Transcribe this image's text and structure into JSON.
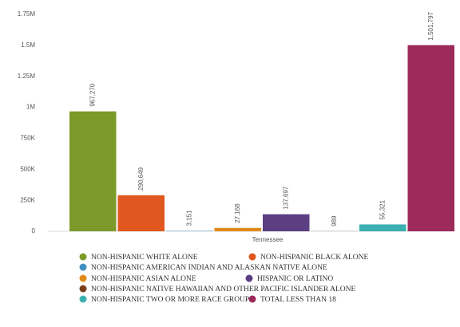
{
  "chart_data": {
    "type": "bar",
    "categories": [
      "Tennessee"
    ],
    "series": [
      {
        "name": "NON-HISPANIC WHITE ALONE",
        "color": "#7b9a2a",
        "values": [
          967270
        ],
        "value_labels": [
          "967,270"
        ]
      },
      {
        "name": "NON-HISPANIC BLACK ALONE",
        "color": "#e0581f",
        "values": [
          290649
        ],
        "value_labels": [
          "290,649"
        ]
      },
      {
        "name": "NON-HISPANIC AMERICAN INDIAN AND ALASKAN NATIVE ALONE",
        "color": "#3f8fc0",
        "values": [
          3151
        ],
        "value_labels": [
          "3,151"
        ]
      },
      {
        "name": "NON-HISPANIC ASIAN ALONE",
        "color": "#e08a1a",
        "values": [
          27168
        ],
        "value_labels": [
          "27,168"
        ]
      },
      {
        "name": "HISPANIC OR LATINO",
        "color": "#5b3f82",
        "values": [
          137697
        ],
        "value_labels": [
          "137,697"
        ]
      },
      {
        "name": "NON-HISPANIC NATIVE HAWAIIAN AND OTHER PACIFIC ISLANDER ALONE",
        "color": "#7a3e1a",
        "values": [
          989
        ]
      },
      {
        "name": "NON-HISPANIC TWO OR MORE RACE GROUPS",
        "color": "#3ab1b0",
        "values": [
          55321
        ],
        "value_labels": [
          "55,321"
        ]
      },
      {
        "name": "TOTAL LESS THAN 18",
        "color": "#9c2a5a",
        "values": [
          1501797
        ],
        "value_labels": [
          "1,501,797"
        ]
      }
    ],
    "ylim": [
      0,
      1750000
    ],
    "yticks": [
      0,
      {
        "value": 250000,
        "label": "250K"
      },
      {
        "value": 500000,
        "label": "500K"
      },
      {
        "value": 750000,
        "label": "750K"
      },
      {
        "value": 1000000,
        "label": "1M"
      },
      {
        "value": 1250000,
        "label": "1.25M"
      },
      {
        "value": 1500000,
        "label": "1.5M"
      },
      {
        "value": 1750000,
        "label": "1.75M"
      }
    ]
  }
}
